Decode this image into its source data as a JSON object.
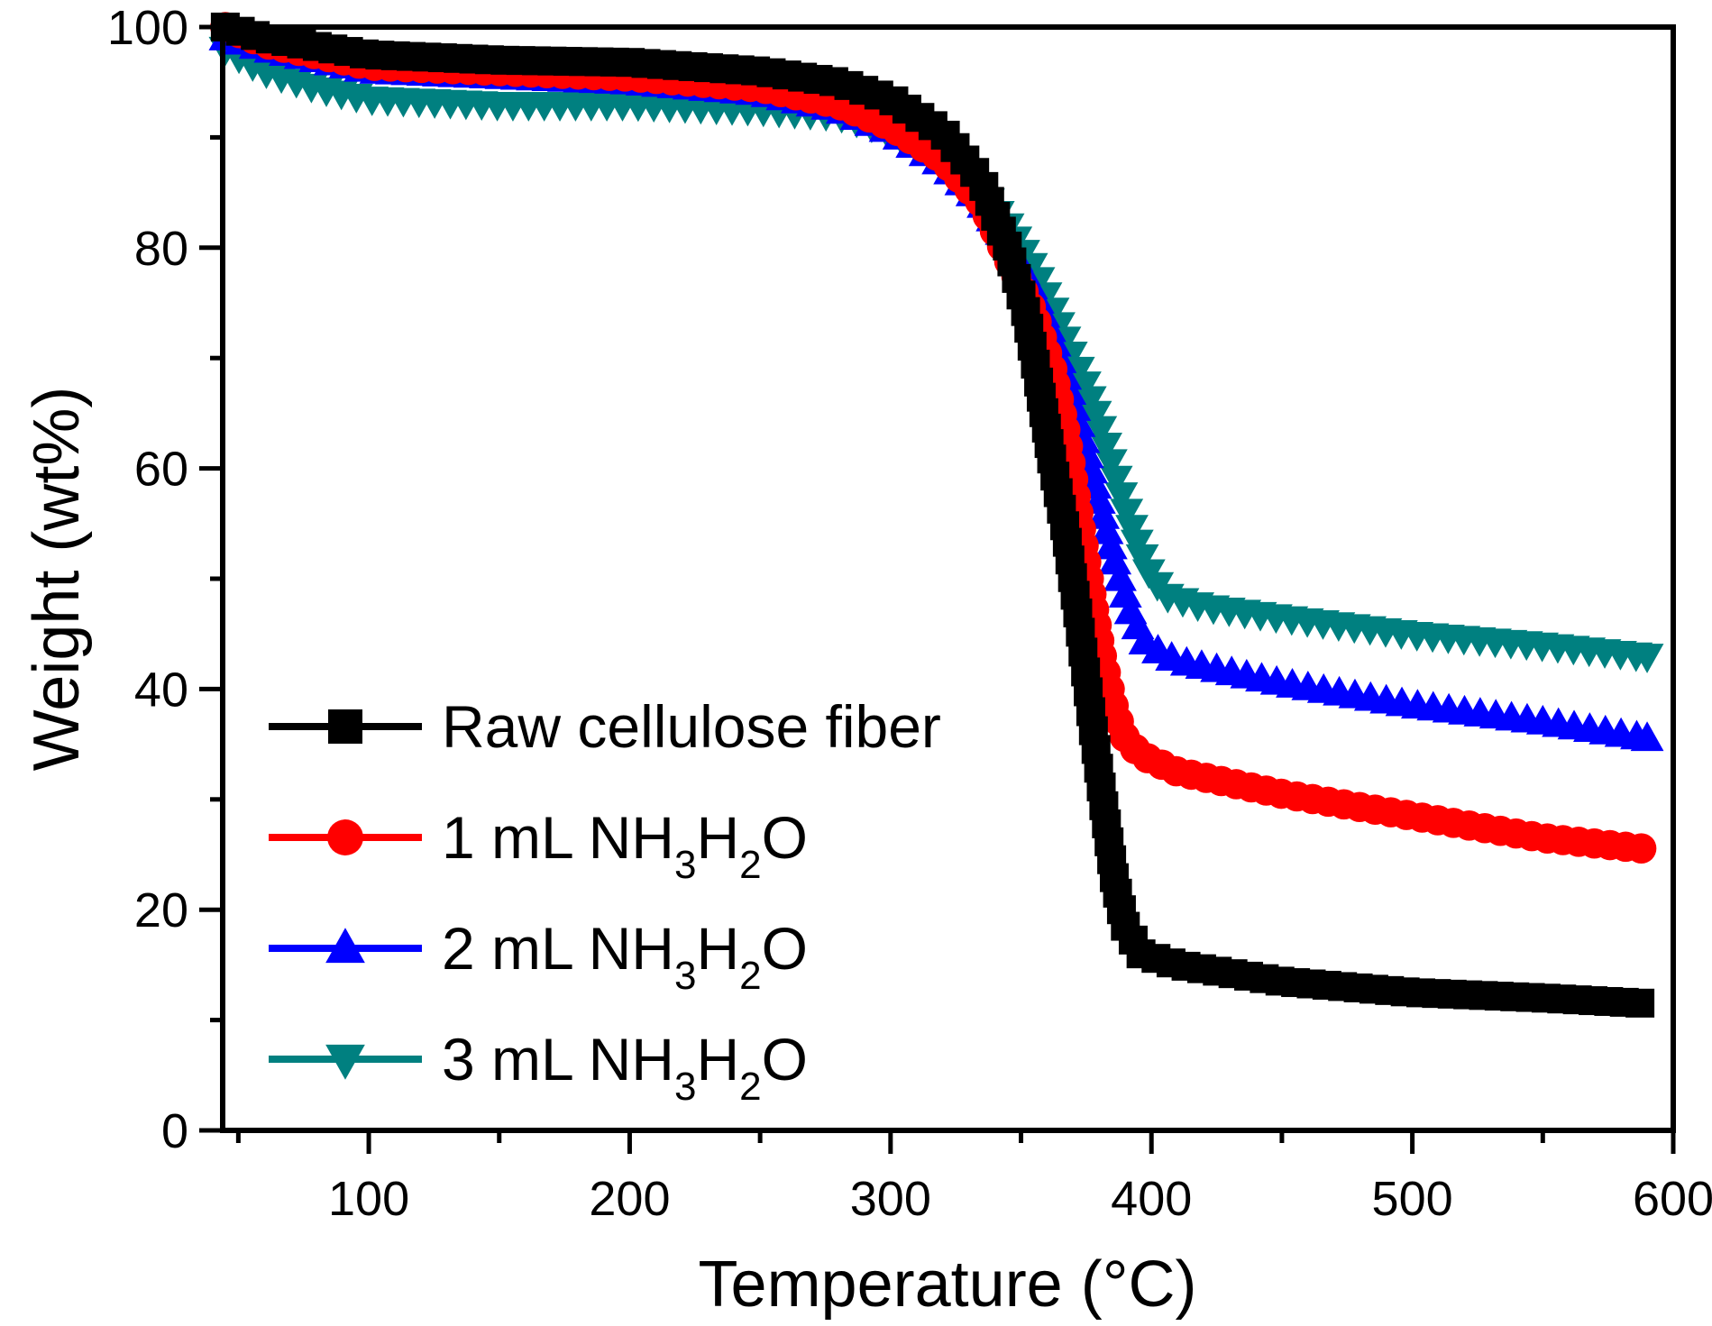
{
  "chart_data": {
    "type": "line",
    "title": "",
    "xlabel": "Temperature (°C)",
    "ylabel": "Weight (wt%)",
    "xlim": [
      44,
      600
    ],
    "ylim": [
      0,
      100
    ],
    "x_ticks": [
      100,
      200,
      300,
      400,
      500,
      600
    ],
    "x_minor_ticks": [
      50,
      150,
      250,
      350,
      450,
      550
    ],
    "y_ticks": [
      0,
      20,
      40,
      60,
      80,
      100
    ],
    "y_minor_ticks": [
      10,
      30,
      50,
      70,
      90
    ],
    "grid": false,
    "legend_position": "bottom-left",
    "series": [
      {
        "name": "Raw cellulose fiber",
        "legend_parts": [
          {
            "text": "Raw cellulose fiber"
          }
        ],
        "color": "#000000",
        "marker": "square",
        "points": [
          [
            45,
            100
          ],
          [
            60,
            99
          ],
          [
            100,
            97.5
          ],
          [
            150,
            97
          ],
          [
            200,
            96.8
          ],
          [
            250,
            96
          ],
          [
            280,
            95
          ],
          [
            300,
            93.5
          ],
          [
            320,
            90.5
          ],
          [
            335,
            86
          ],
          [
            345,
            80
          ],
          [
            352,
            74
          ],
          [
            357,
            67.5
          ],
          [
            362,
            60.5
          ],
          [
            367,
            54.5
          ],
          [
            372,
            46.5
          ],
          [
            377,
            37.5
          ],
          [
            382,
            29
          ],
          [
            386,
            22.5
          ],
          [
            390,
            18.5
          ],
          [
            396,
            16
          ],
          [
            410,
            15
          ],
          [
            450,
            13.5
          ],
          [
            500,
            12.5
          ],
          [
            550,
            12
          ],
          [
            590,
            11.5
          ]
        ]
      },
      {
        "name": "1 mL NH3H2O",
        "legend_parts": [
          {
            "text": "1 mL NH"
          },
          {
            "text": "3",
            "sub": true
          },
          {
            "text": "H"
          },
          {
            "text": "2",
            "sub": true
          },
          {
            "text": "O"
          }
        ],
        "color": "#ff0000",
        "marker": "circle",
        "points": [
          [
            45,
            100
          ],
          [
            60,
            98.5
          ],
          [
            100,
            96.5
          ],
          [
            150,
            96
          ],
          [
            200,
            95.5
          ],
          [
            250,
            94.5
          ],
          [
            280,
            93
          ],
          [
            300,
            91
          ],
          [
            320,
            88
          ],
          [
            335,
            84
          ],
          [
            345,
            79
          ],
          [
            355,
            74
          ],
          [
            362,
            69
          ],
          [
            367,
            63.5
          ],
          [
            371,
            57.5
          ],
          [
            376,
            50
          ],
          [
            381,
            43
          ],
          [
            386,
            38
          ],
          [
            390,
            35.5
          ],
          [
            396,
            34
          ],
          [
            410,
            32.5
          ],
          [
            450,
            30.5
          ],
          [
            500,
            28.5
          ],
          [
            550,
            26.5
          ],
          [
            590,
            25.5
          ]
        ]
      },
      {
        "name": "2 mL NH3H2O",
        "legend_parts": [
          {
            "text": "2 mL NH"
          },
          {
            "text": "3",
            "sub": true
          },
          {
            "text": "H"
          },
          {
            "text": "2",
            "sub": true
          },
          {
            "text": "O"
          }
        ],
        "color": "#0000ff",
        "marker": "triangle-up",
        "points": [
          [
            45,
            99
          ],
          [
            60,
            98
          ],
          [
            100,
            96
          ],
          [
            150,
            95.5
          ],
          [
            200,
            95
          ],
          [
            250,
            94
          ],
          [
            280,
            92.5
          ],
          [
            300,
            90.5
          ],
          [
            320,
            87.5
          ],
          [
            335,
            84
          ],
          [
            345,
            80.5
          ],
          [
            355,
            76
          ],
          [
            362,
            72
          ],
          [
            368,
            67.5
          ],
          [
            374,
            62.5
          ],
          [
            380,
            57
          ],
          [
            386,
            51.5
          ],
          [
            392,
            47
          ],
          [
            398,
            44
          ],
          [
            410,
            42.5
          ],
          [
            450,
            40.5
          ],
          [
            500,
            38.5
          ],
          [
            550,
            37
          ],
          [
            590,
            35.5
          ]
        ]
      },
      {
        "name": "3 mL NH3H2O",
        "legend_parts": [
          {
            "text": "3 mL NH"
          },
          {
            "text": "3",
            "sub": true
          },
          {
            "text": "H"
          },
          {
            "text": "2",
            "sub": true
          },
          {
            "text": "O"
          }
        ],
        "color": "#008080",
        "marker": "triangle-down",
        "points": [
          [
            45,
            98
          ],
          [
            60,
            96
          ],
          [
            80,
            94.5
          ],
          [
            100,
            93.5
          ],
          [
            150,
            93
          ],
          [
            200,
            93
          ],
          [
            250,
            92.5
          ],
          [
            280,
            92
          ],
          [
            300,
            90.5
          ],
          [
            320,
            88
          ],
          [
            335,
            85
          ],
          [
            345,
            82
          ],
          [
            355,
            78
          ],
          [
            362,
            74.5
          ],
          [
            368,
            71
          ],
          [
            374,
            68
          ],
          [
            380,
            64
          ],
          [
            386,
            59.5
          ],
          [
            392,
            55
          ],
          [
            398,
            51
          ],
          [
            405,
            48.5
          ],
          [
            420,
            47.5
          ],
          [
            450,
            46.5
          ],
          [
            500,
            45
          ],
          [
            550,
            44
          ],
          [
            590,
            43
          ]
        ]
      }
    ]
  }
}
